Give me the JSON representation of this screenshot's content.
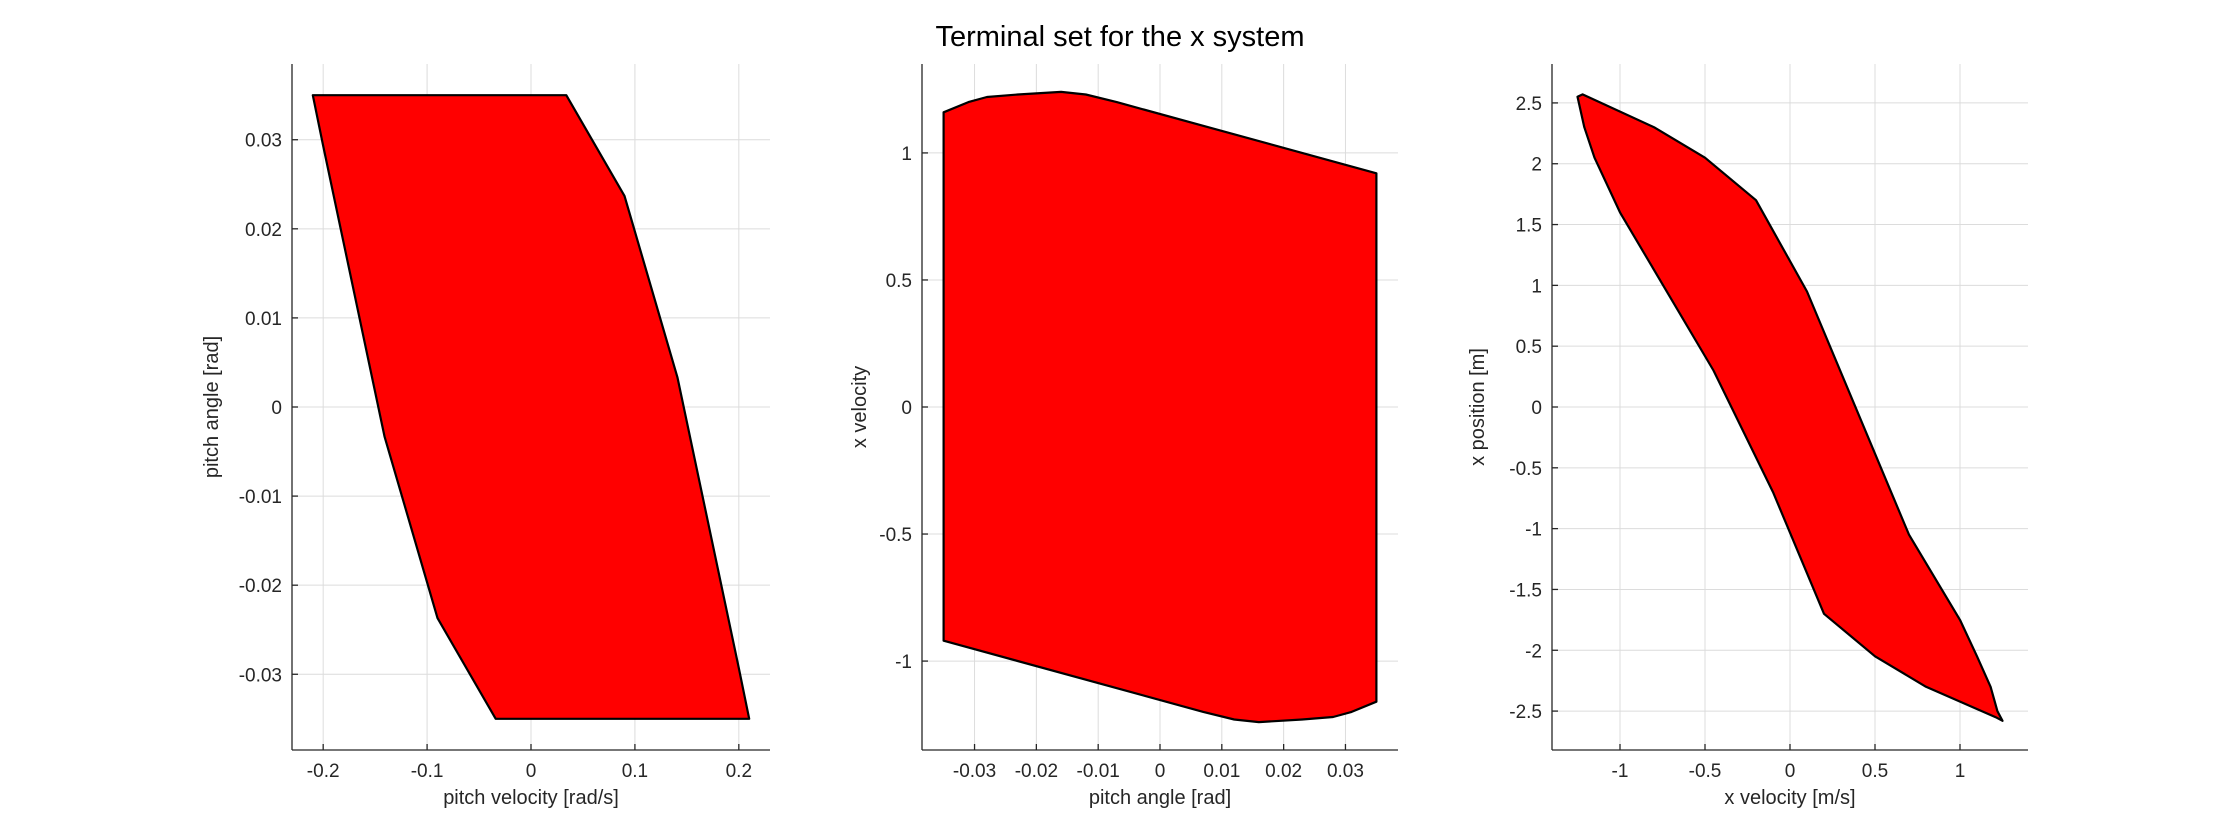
{
  "title": "Terminal set for the x system",
  "colors": {
    "fill": "#ff0000",
    "edge": "#000000",
    "grid": "#dcdcdc",
    "axis": "#262626"
  },
  "chart_data": [
    {
      "type": "area",
      "xlabel": "pitch velocity [rad/s]",
      "ylabel": "pitch angle [rad]",
      "xlim": [
        -0.23,
        0.23
      ],
      "ylim": [
        -0.0385,
        0.0385
      ],
      "grid": true,
      "xticks": [
        -0.2,
        -0.1,
        0,
        0.1,
        0.2
      ],
      "xtick_labels": [
        "-0.2",
        "-0.1",
        "0",
        "0.1",
        "0.2"
      ],
      "yticks": [
        -0.03,
        -0.02,
        -0.01,
        0,
        0.01,
        0.02,
        0.03
      ],
      "ytick_labels": [
        "-0.03",
        "-0.02",
        "-0.01",
        "0",
        "0.01",
        "0.02",
        "0.03"
      ],
      "polygon": [
        [
          -0.21,
          0.035
        ],
        [
          0.034,
          0.035
        ],
        [
          0.09,
          0.0237
        ],
        [
          0.141,
          0.0033
        ],
        [
          0.2,
          -0.0293
        ],
        [
          0.21,
          -0.035
        ],
        [
          -0.034,
          -0.035
        ],
        [
          -0.09,
          -0.0237
        ],
        [
          -0.141,
          -0.0033
        ],
        [
          -0.2,
          0.0293
        ]
      ]
    },
    {
      "type": "area",
      "xlabel": "pitch angle [rad]",
      "ylabel": "x velocity",
      "xlim": [
        -0.0385,
        0.0385
      ],
      "ylim": [
        -1.35,
        1.35
      ],
      "grid": true,
      "xticks": [
        -0.03,
        -0.02,
        -0.01,
        0,
        0.01,
        0.02,
        0.03
      ],
      "xtick_labels": [
        "-0.03",
        "-0.02",
        "-0.01",
        "0",
        "0.01",
        "0.02",
        "0.03"
      ],
      "yticks": [
        -1,
        -0.5,
        0,
        0.5,
        1
      ],
      "ytick_labels": [
        "-1",
        "-0.5",
        "0",
        "0.5",
        "1"
      ],
      "polygon": [
        [
          -0.035,
          1.16
        ],
        [
          -0.031,
          1.2
        ],
        [
          -0.028,
          1.22
        ],
        [
          -0.023,
          1.23
        ],
        [
          -0.016,
          1.24
        ],
        [
          -0.012,
          1.23
        ],
        [
          -0.007,
          1.2
        ],
        [
          0.035,
          0.92
        ],
        [
          0.035,
          -1.16
        ],
        [
          0.031,
          -1.2
        ],
        [
          0.028,
          -1.22
        ],
        [
          0.023,
          -1.23
        ],
        [
          0.016,
          -1.24
        ],
        [
          0.012,
          -1.23
        ],
        [
          0.007,
          -1.2
        ],
        [
          -0.035,
          -0.92
        ]
      ]
    },
    {
      "type": "area",
      "xlabel": "x velocity [m/s]",
      "ylabel": "x position [m]",
      "xlim": [
        -1.4,
        1.4
      ],
      "ylim": [
        -2.82,
        2.82
      ],
      "grid": true,
      "xticks": [
        -1,
        -0.5,
        0,
        0.5,
        1
      ],
      "xtick_labels": [
        "-1",
        "-0.5",
        "0",
        "0.5",
        "1"
      ],
      "yticks": [
        -2.5,
        -2,
        -1.5,
        -1,
        -0.5,
        0,
        0.5,
        1,
        1.5,
        2,
        2.5
      ],
      "ytick_labels": [
        "-2.5",
        "-2",
        "-1.5",
        "-1",
        "-0.5",
        "0",
        "0.5",
        "1",
        "1.5",
        "2",
        "2.5"
      ],
      "polygon": [
        [
          -1.22,
          2.57
        ],
        [
          -1.25,
          2.55
        ],
        [
          -1.21,
          2.3
        ],
        [
          -1.15,
          2.05
        ],
        [
          -1.0,
          1.6
        ],
        [
          -0.45,
          0.3
        ],
        [
          -0.1,
          -0.7
        ],
        [
          0.2,
          -1.7
        ],
        [
          0.5,
          -2.05
        ],
        [
          0.8,
          -2.3
        ],
        [
          1.21,
          -2.55
        ],
        [
          1.25,
          -2.58
        ],
        [
          1.22,
          -2.5
        ],
        [
          1.18,
          -2.3
        ],
        [
          1.1,
          -2.05
        ],
        [
          1.0,
          -1.75
        ],
        [
          0.7,
          -1.05
        ],
        [
          0.1,
          0.95
        ],
        [
          -0.2,
          1.7
        ],
        [
          -0.5,
          2.05
        ],
        [
          -0.8,
          2.3
        ]
      ]
    }
  ]
}
